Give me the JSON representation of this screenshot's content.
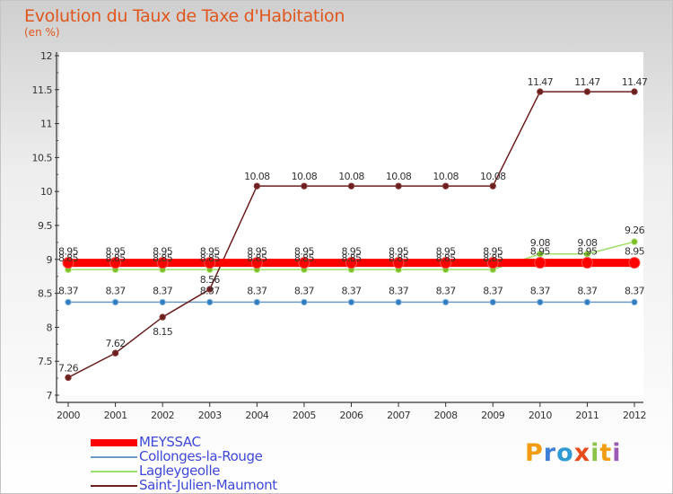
{
  "title": "Evolution du Taux de Taxe d'Habitation",
  "unit": "(en %)",
  "logo": {
    "text": "Proxiti",
    "letters": [
      "P",
      "r",
      "o",
      "x",
      "i",
      "t",
      "i"
    ],
    "colors": [
      "#f39c12",
      "#3f7fd8",
      "#2e9ad4",
      "#e84c1c",
      "#8bc34a",
      "#f39c12",
      "#9b59b6"
    ]
  },
  "chart_data": {
    "type": "line",
    "x": [
      "2000",
      "2001",
      "2002",
      "2003",
      "2004",
      "2005",
      "2006",
      "2007",
      "2008",
      "2009",
      "2010",
      "2011",
      "2012"
    ],
    "ylim": [
      7,
      12
    ],
    "yticks": [
      "7",
      "7.5",
      "8",
      "8.5",
      "9",
      "9.5",
      "10",
      "10.5",
      "11",
      "11.5",
      "12"
    ],
    "series": [
      {
        "name": "MEYSSAC",
        "color": "#ff0000",
        "values": [
          8.95,
          8.95,
          8.95,
          8.95,
          8.95,
          8.95,
          8.95,
          8.95,
          8.95,
          8.95,
          8.95,
          8.95,
          8.95
        ],
        "labels": [
          "8.95",
          "8.95",
          "8.95",
          "8.95",
          "8.95",
          "8.95",
          "8.95",
          "8.95",
          "8.95",
          "8.95",
          "8.95",
          "8.95",
          "8.95"
        ]
      },
      {
        "name": "Collonges-la-Rouge",
        "color": "#6b9bc6",
        "values": [
          8.37,
          8.37,
          8.37,
          8.37,
          8.37,
          8.37,
          8.37,
          8.37,
          8.37,
          8.37,
          8.37,
          8.37,
          8.37
        ],
        "labels": [
          "8.37",
          "8.37",
          "8.37",
          "8.37",
          "8.37",
          "8.37",
          "8.37",
          "8.37",
          "8.37",
          "8.37",
          "8.37",
          "8.37",
          "8.37"
        ]
      },
      {
        "name": "Lagleygeolle",
        "color": "#9ee06c",
        "values": [
          8.85,
          8.85,
          8.85,
          8.85,
          8.85,
          8.85,
          8.85,
          8.85,
          8.85,
          8.85,
          9.08,
          9.08,
          9.26
        ],
        "labels": [
          "8.85",
          "8.85",
          "8.85",
          "8.85",
          "8.85",
          "8.85",
          "8.85",
          "8.85",
          "8.85",
          "8.85",
          "9.08",
          "9.08",
          "9.26"
        ]
      },
      {
        "name": "Saint-Julien-Maumont",
        "color": "#6b1f1f",
        "values": [
          7.26,
          7.62,
          8.15,
          8.56,
          10.08,
          10.08,
          10.08,
          10.08,
          10.08,
          10.08,
          11.47,
          11.47,
          11.47
        ],
        "labels": [
          "7.26",
          "7.62",
          "8.15",
          "8.56",
          "10.08",
          "10.08",
          "10.08",
          "10.08",
          "10.08",
          "10.08",
          "11.47",
          "11.47",
          "11.47"
        ]
      }
    ],
    "legend_position": "bottom-left"
  }
}
